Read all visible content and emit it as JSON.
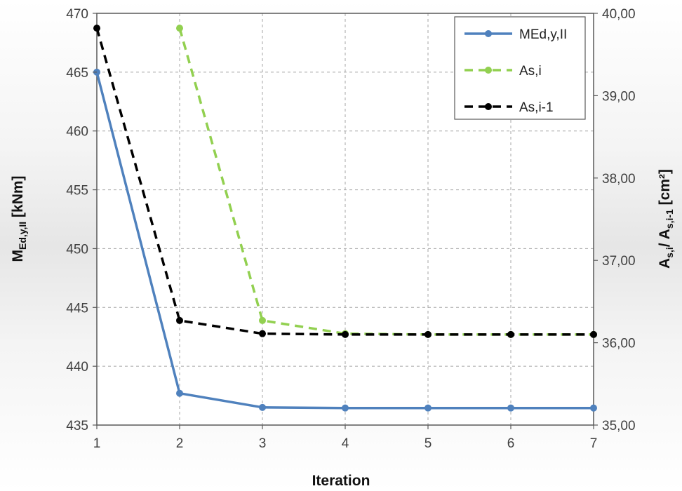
{
  "chart_data": {
    "type": "line",
    "x": [
      1,
      2,
      3,
      4,
      5,
      6,
      7
    ],
    "xlabel": "Iteration",
    "ylabel_left": {
      "main": "M",
      "sub": "Ed,y,II",
      "unit": " [kNm]"
    },
    "ylabel_right": {
      "a1": "A",
      "s1": "s,i",
      "mid": "/ A",
      "s2": "s,i-1",
      "unit": " [cm²]"
    },
    "ylim_left": [
      435,
      470
    ],
    "yticks_left": [
      435,
      440,
      445,
      450,
      455,
      460,
      465,
      470
    ],
    "ylim_right": [
      35,
      40
    ],
    "yticks_right": [
      "35,00",
      "36,00",
      "37,00",
      "38,00",
      "39,00",
      "40,00"
    ],
    "xticks": [
      "1",
      "2",
      "3",
      "4",
      "5",
      "6",
      "7"
    ],
    "grid": true,
    "legend_position": "top-right",
    "series": [
      {
        "name": "MEd,y,II",
        "axis": "left",
        "color": "#4f81bd",
        "dash": "solid",
        "x": [
          1,
          2,
          3,
          4,
          5,
          6,
          7
        ],
        "values": [
          465.0,
          437.7,
          436.5,
          436.45,
          436.45,
          436.45,
          436.45
        ]
      },
      {
        "name": "As,i",
        "axis": "right",
        "color": "#92d050",
        "dash": "dashed",
        "x": [
          2,
          3,
          4,
          5,
          6,
          7
        ],
        "values": [
          39.82,
          36.27,
          36.11,
          36.1,
          36.1,
          36.1
        ]
      },
      {
        "name": "As,i-1",
        "axis": "right",
        "color": "#000000",
        "dash": "dashed",
        "x": [
          1,
          2,
          3,
          4,
          5,
          6,
          7
        ],
        "values": [
          39.82,
          36.27,
          36.11,
          36.1,
          36.1,
          36.1,
          36.1
        ]
      }
    ]
  }
}
